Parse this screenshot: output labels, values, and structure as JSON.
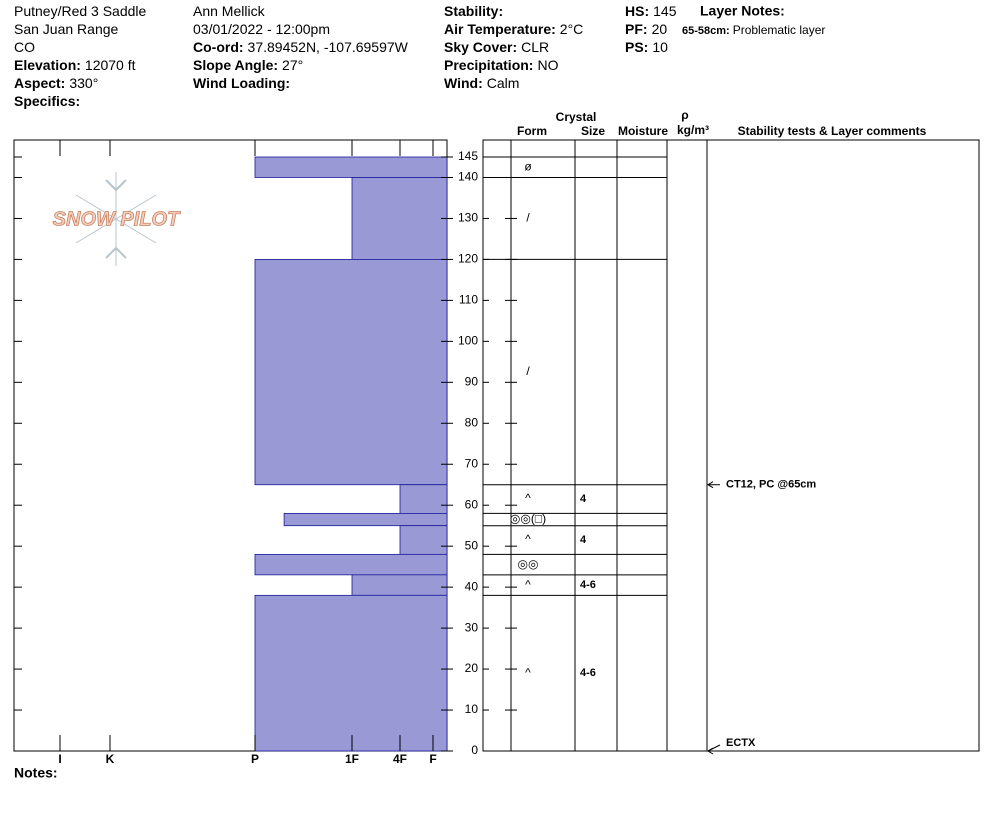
{
  "header": {
    "columns": [
      [
        {
          "value": "Putney/Red 3 Saddle"
        },
        {
          "value": "San Juan Range"
        },
        {
          "value": "CO"
        },
        {
          "label": "Elevation:",
          "value": "12070 ft"
        },
        {
          "label": "Aspect:",
          "value": "330°"
        },
        {
          "label": "Specifics:"
        }
      ],
      [
        {
          "value": "Ann Mellick"
        },
        {
          "value": "03/01/2022 - 12:00pm"
        },
        {
          "label": "Co-ord:",
          "value": "37.89452N, -107.69597W"
        },
        {
          "label": "Slope Angle:",
          "value": "27°"
        },
        {
          "label": "Wind Loading:"
        }
      ],
      [
        {
          "label": "Stability:"
        },
        {
          "label": "Air Temperature:",
          "value": "2°C"
        },
        {
          "label": "Sky Cover:",
          "value": "CLR"
        },
        {
          "label": "Precipitation:",
          "value": "NO"
        },
        {
          "label": "Wind:",
          "value": "Calm"
        }
      ],
      [
        {
          "label": "HS:",
          "value": 145
        },
        {
          "label": "PF:",
          "value": 20
        },
        {
          "label": "PS:",
          "value": 10
        }
      ]
    ],
    "layer_notes_title": "Layer Notes:",
    "layer_notes": [
      {
        "depth": "65-58cm:",
        "text": "Problematic layer"
      }
    ]
  },
  "logo": "SNOW PILOT",
  "table_headers": {
    "crystal": "Crystal",
    "form": "Form",
    "size": "Size",
    "moisture": "Moisture",
    "rho": "ρ",
    "density_unit": "kg/m³",
    "comments": "Stability tests & Layer comments"
  },
  "notes_label": "Notes:",
  "chart_data": {
    "type": "snow-profile",
    "ylim": [
      0,
      145
    ],
    "yticks": [
      0,
      10,
      20,
      30,
      40,
      50,
      60,
      70,
      80,
      90,
      100,
      110,
      120,
      130,
      140,
      145
    ],
    "xlim": [
      0,
      7
    ],
    "xticks": [
      {
        "value": 1,
        "label": "F"
      },
      {
        "value": 2,
        "label": "4F"
      },
      {
        "value": 3,
        "label": "1F"
      },
      {
        "value": 4,
        "label": "P"
      },
      {
        "value": 5,
        "label": "K"
      },
      {
        "value": 6,
        "label": "I"
      }
    ],
    "color": "#9999d6",
    "layer_top": [
      145,
      140,
      120,
      65,
      58,
      55,
      48,
      43,
      38
    ],
    "layer_bottom": [
      140,
      120,
      65,
      58,
      55,
      48,
      43,
      38,
      0
    ],
    "hardness": [
      4,
      3,
      4,
      2,
      3.7,
      2,
      4,
      3,
      4
    ],
    "form": [
      "ø",
      "/",
      "/",
      "^",
      "◎◎(□)",
      "^",
      "◎◎",
      "^",
      "^"
    ],
    "size": [
      null,
      null,
      null,
      "4",
      null,
      "4",
      null,
      "4-6",
      "4-6"
    ],
    "tests": [
      {
        "depth": 65,
        "text": "CT12, PC @65cm"
      },
      {
        "depth": 0,
        "text": "ECTX"
      }
    ]
  }
}
